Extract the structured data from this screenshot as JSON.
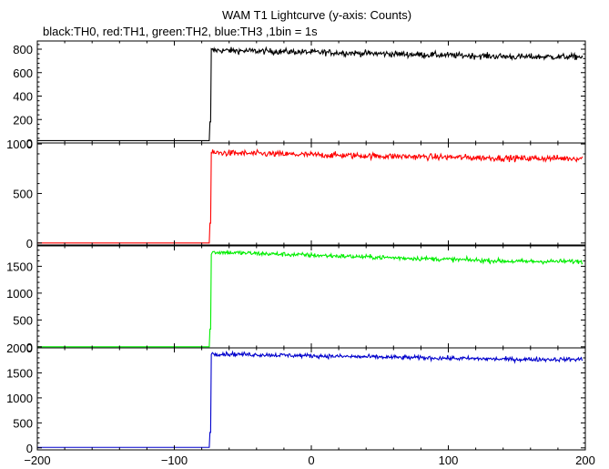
{
  "title": "WAM T1 Lightcurve (y-axis: Counts)",
  "subtitle": "black:TH0, red:TH1, green:TH2, blue:TH3 ,1bin = 1s",
  "chart_data": {
    "type": "line",
    "title": "WAM T1 Lightcurve (y-axis: Counts)",
    "subtitle": "black:TH0, red:TH1, green:TH2, blue:TH3 ,1bin = 1s",
    "ylabel": "Counts",
    "xlim": [
      -200,
      200
    ],
    "x_ticks": [
      -200,
      -100,
      0,
      100,
      200
    ],
    "trigger_time": -73,
    "grid": false,
    "panels": [
      {
        "series": "TH0",
        "color": "#000000",
        "ylim": [
          0,
          870
        ],
        "y_ticks": [
          0,
          200,
          400,
          600,
          800
        ],
        "segments": [
          {
            "x": [
              -200,
              -74
            ],
            "level": 20
          },
          {
            "x": [
              -74,
              -73
            ],
            "level": 180
          },
          {
            "x": [
              -73,
              -60
            ],
            "level": 790
          },
          {
            "x": [
              -60,
              100
            ],
            "level": 770
          },
          {
            "x": [
              100,
              200
            ],
            "level": 735
          }
        ],
        "noise": 25
      },
      {
        "series": "TH1",
        "color": "#ff0000",
        "ylim": [
          -20,
          1010
        ],
        "y_ticks": [
          0,
          500,
          1000
        ],
        "segments": [
          {
            "x": [
              -200,
              -74
            ],
            "level": 0
          },
          {
            "x": [
              -74,
              -73
            ],
            "level": 200
          },
          {
            "x": [
              -73,
              -60
            ],
            "level": 910
          },
          {
            "x": [
              -60,
              100
            ],
            "level": 885
          },
          {
            "x": [
              100,
              200
            ],
            "level": 855
          }
        ],
        "noise": 30
      },
      {
        "series": "TH2",
        "color": "#00ee00",
        "ylim": [
          -20,
          1880
        ],
        "y_ticks": [
          0,
          500,
          1000,
          1500
        ],
        "segments": [
          {
            "x": [
              -200,
              -74
            ],
            "level": 0
          },
          {
            "x": [
              -74,
              -73
            ],
            "level": 330
          },
          {
            "x": [
              -73,
              -60
            ],
            "level": 1760
          },
          {
            "x": [
              -60,
              100
            ],
            "level": 1690
          },
          {
            "x": [
              100,
              200
            ],
            "level": 1590
          }
        ],
        "noise": 40
      },
      {
        "series": "TH3",
        "color": "#0000cc",
        "ylim": [
          -40,
          2000
        ],
        "y_ticks": [
          0,
          500,
          1000,
          1500,
          2000
        ],
        "segments": [
          {
            "x": [
              -200,
              -74
            ],
            "level": 10
          },
          {
            "x": [
              -74,
              -73
            ],
            "level": 310
          },
          {
            "x": [
              -73,
              -60
            ],
            "level": 1880
          },
          {
            "x": [
              -60,
              100
            ],
            "level": 1830
          },
          {
            "x": [
              100,
              200
            ],
            "level": 1770
          }
        ],
        "noise": 40
      }
    ]
  }
}
